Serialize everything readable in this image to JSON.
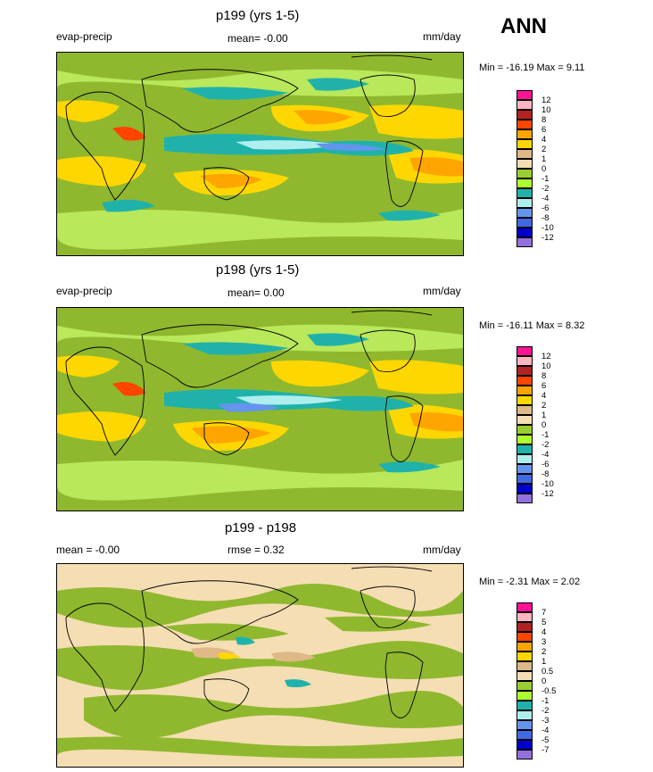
{
  "season": "ANN",
  "panels": [
    {
      "title": "p199 (yrs 1-5)",
      "left_label": "evap-precip",
      "mid_label": "mean=  -0.00",
      "units": "mm/day",
      "minmax": "Min = -16.19 Max =   9.11",
      "levels": [
        "12",
        "10",
        "8",
        "6",
        "4",
        "2",
        "1",
        "0",
        "-1",
        "-2",
        "-4",
        "-6",
        "-8",
        "-10",
        "-12"
      ],
      "colors": [
        "#ff1493",
        "#ffb6c1",
        "#b22222",
        "#ff4500",
        "#ffa500",
        "#ffd700",
        "#deb887",
        "#f5deb3",
        "#9acd32",
        "#adff2f",
        "#20b2aa",
        "#afeeee",
        "#6495ed",
        "#4169e1",
        "#0000cd",
        "#9370db"
      ]
    },
    {
      "title": "p198 (yrs 1-5)",
      "left_label": "evap-precip",
      "mid_label": "mean=  0.00",
      "units": "mm/day",
      "minmax": "Min = -16.11 Max =   8.32",
      "levels": [
        "12",
        "10",
        "8",
        "6",
        "4",
        "2",
        "1",
        "0",
        "-1",
        "-2",
        "-4",
        "-6",
        "-8",
        "-10",
        "-12"
      ],
      "colors": [
        "#ff1493",
        "#ffb6c1",
        "#b22222",
        "#ff4500",
        "#ffa500",
        "#ffd700",
        "#deb887",
        "#f5deb3",
        "#9acd32",
        "#adff2f",
        "#20b2aa",
        "#afeeee",
        "#6495ed",
        "#4169e1",
        "#0000cd",
        "#9370db"
      ]
    },
    {
      "title": "p199 - p198",
      "left_label": "mean =  -0.00",
      "mid_label": "rmse =   0.32",
      "units": "mm/day",
      "minmax": "Min =  -2.31 Max =   2.02",
      "levels": [
        "7",
        "5",
        "4",
        "3",
        "2",
        "1",
        "0.5",
        "0",
        "-0.5",
        "-1",
        "-2",
        "-3",
        "-4",
        "-5",
        "-7"
      ],
      "colors": [
        "#ff1493",
        "#ffb6c1",
        "#b22222",
        "#ff4500",
        "#ffa500",
        "#ffd700",
        "#deb887",
        "#f5deb3",
        "#9acd32",
        "#adff2f",
        "#20b2aa",
        "#afeeee",
        "#6495ed",
        "#4169e1",
        "#0000cd",
        "#9370db"
      ]
    }
  ]
}
